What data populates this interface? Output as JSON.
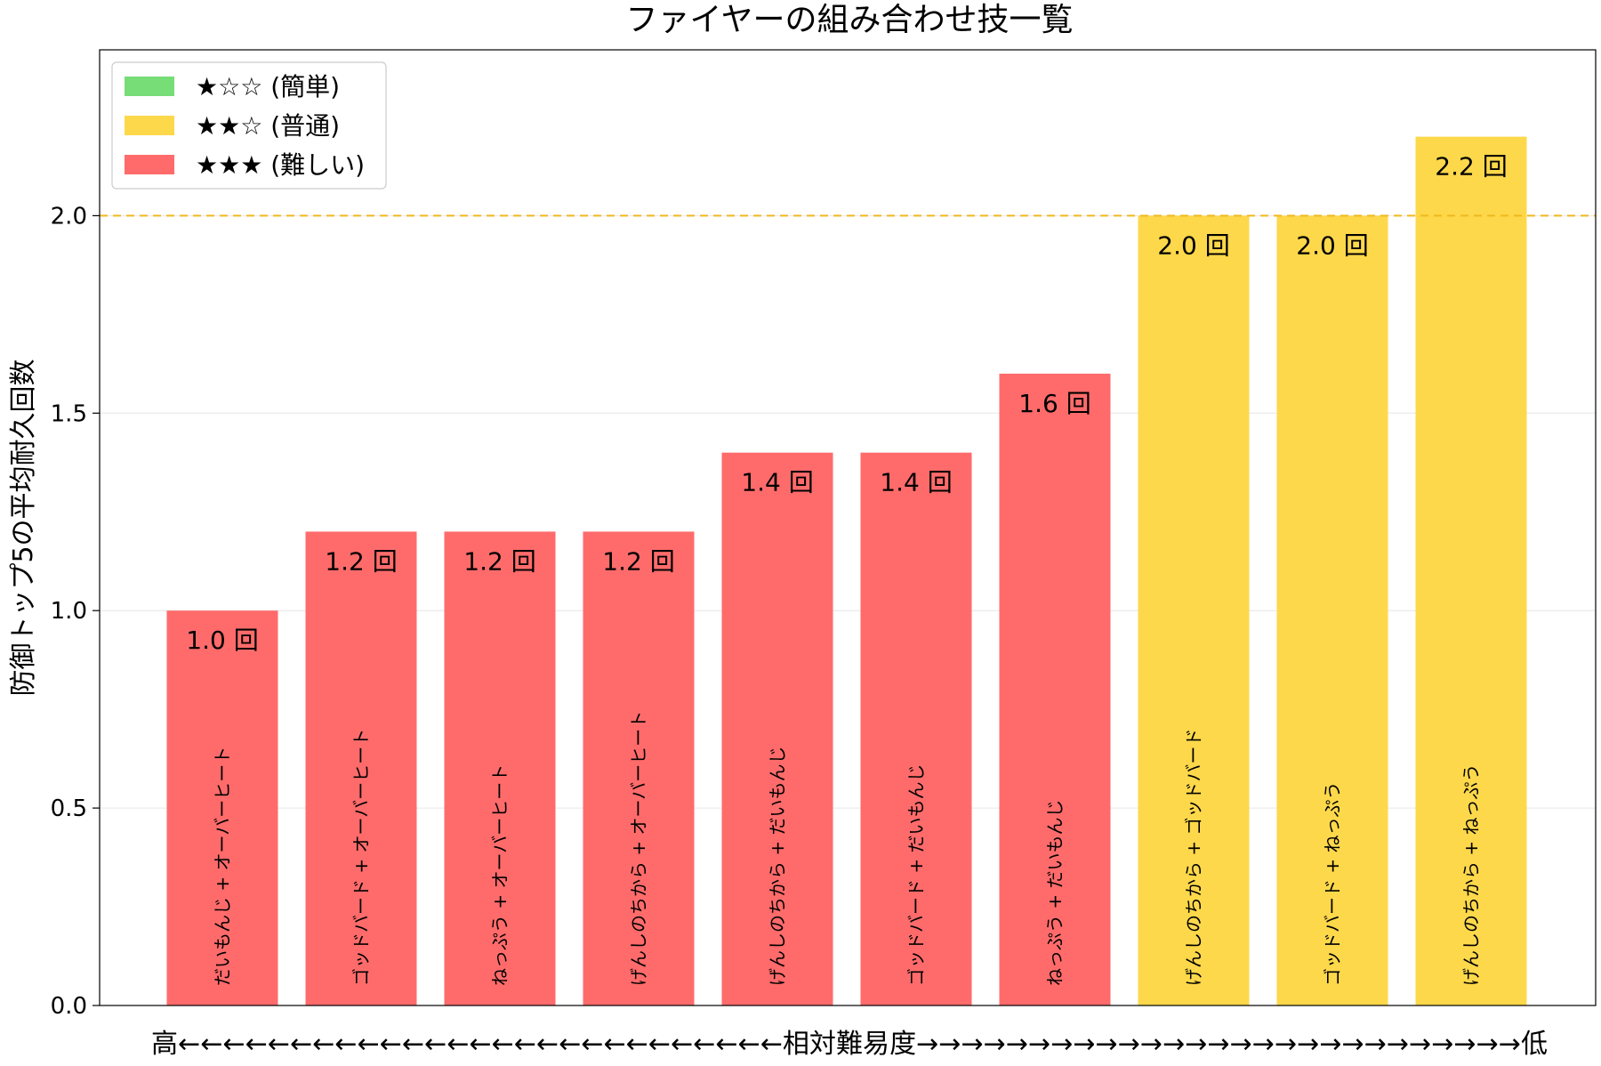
{
  "chart_data": {
    "type": "bar",
    "title": "ファイヤーの組み合わせ技一覧",
    "ylabel": "防御トップ5の平均耐久回数",
    "xlabel": "高←←←←←←←←←←←←←←←←←←←←←←←←←←←相対難易度→→→→→→→→→→→→→→→→→→→→→→→→→→→低",
    "ylim": [
      0,
      2.42
    ],
    "yticks": [
      0.0,
      0.5,
      1.0,
      1.5,
      2.0
    ],
    "ytick_labels": [
      "0.0",
      "0.5",
      "1.0",
      "1.5",
      "2.0"
    ],
    "grid": "horizontal",
    "reference_line": {
      "y": 2.0,
      "color": "#f0b91e",
      "style": "dashed"
    },
    "legend_position": "top-left",
    "legend": [
      {
        "label": "★☆☆ (簡単)",
        "color": "#77dd77"
      },
      {
        "label": "★★☆ (普通)",
        "color": "#fdd84b"
      },
      {
        "label": "★★★ (難しい)",
        "color": "#ff6b6b"
      }
    ],
    "categories": [
      "だいもんじ + オーバーヒート",
      "ゴッドバード + オーバーヒート",
      "ねっぷう + オーバーヒート",
      "げんしのちから + オーバーヒート",
      "げんしのちから + だいもんじ",
      "ゴッドバード + だいもんじ",
      "ねっぷう + だいもんじ",
      "げんしのちから + ゴッドバード",
      "ゴッドバード + ねっぷう",
      "げんしのちから + ねっぷう"
    ],
    "values": [
      1.0,
      1.2,
      1.2,
      1.2,
      1.4,
      1.4,
      1.6,
      2.0,
      2.0,
      2.2
    ],
    "value_labels": [
      "1.0 回",
      "1.2 回",
      "1.2 回",
      "1.2 回",
      "1.4 回",
      "1.4 回",
      "1.6 回",
      "2.0 回",
      "2.0 回",
      "2.2 回"
    ],
    "difficulty": [
      "★★★",
      "★★★",
      "★★★",
      "★★★",
      "★★★",
      "★★★",
      "★★★",
      "★★☆",
      "★★☆",
      "★★☆"
    ]
  }
}
